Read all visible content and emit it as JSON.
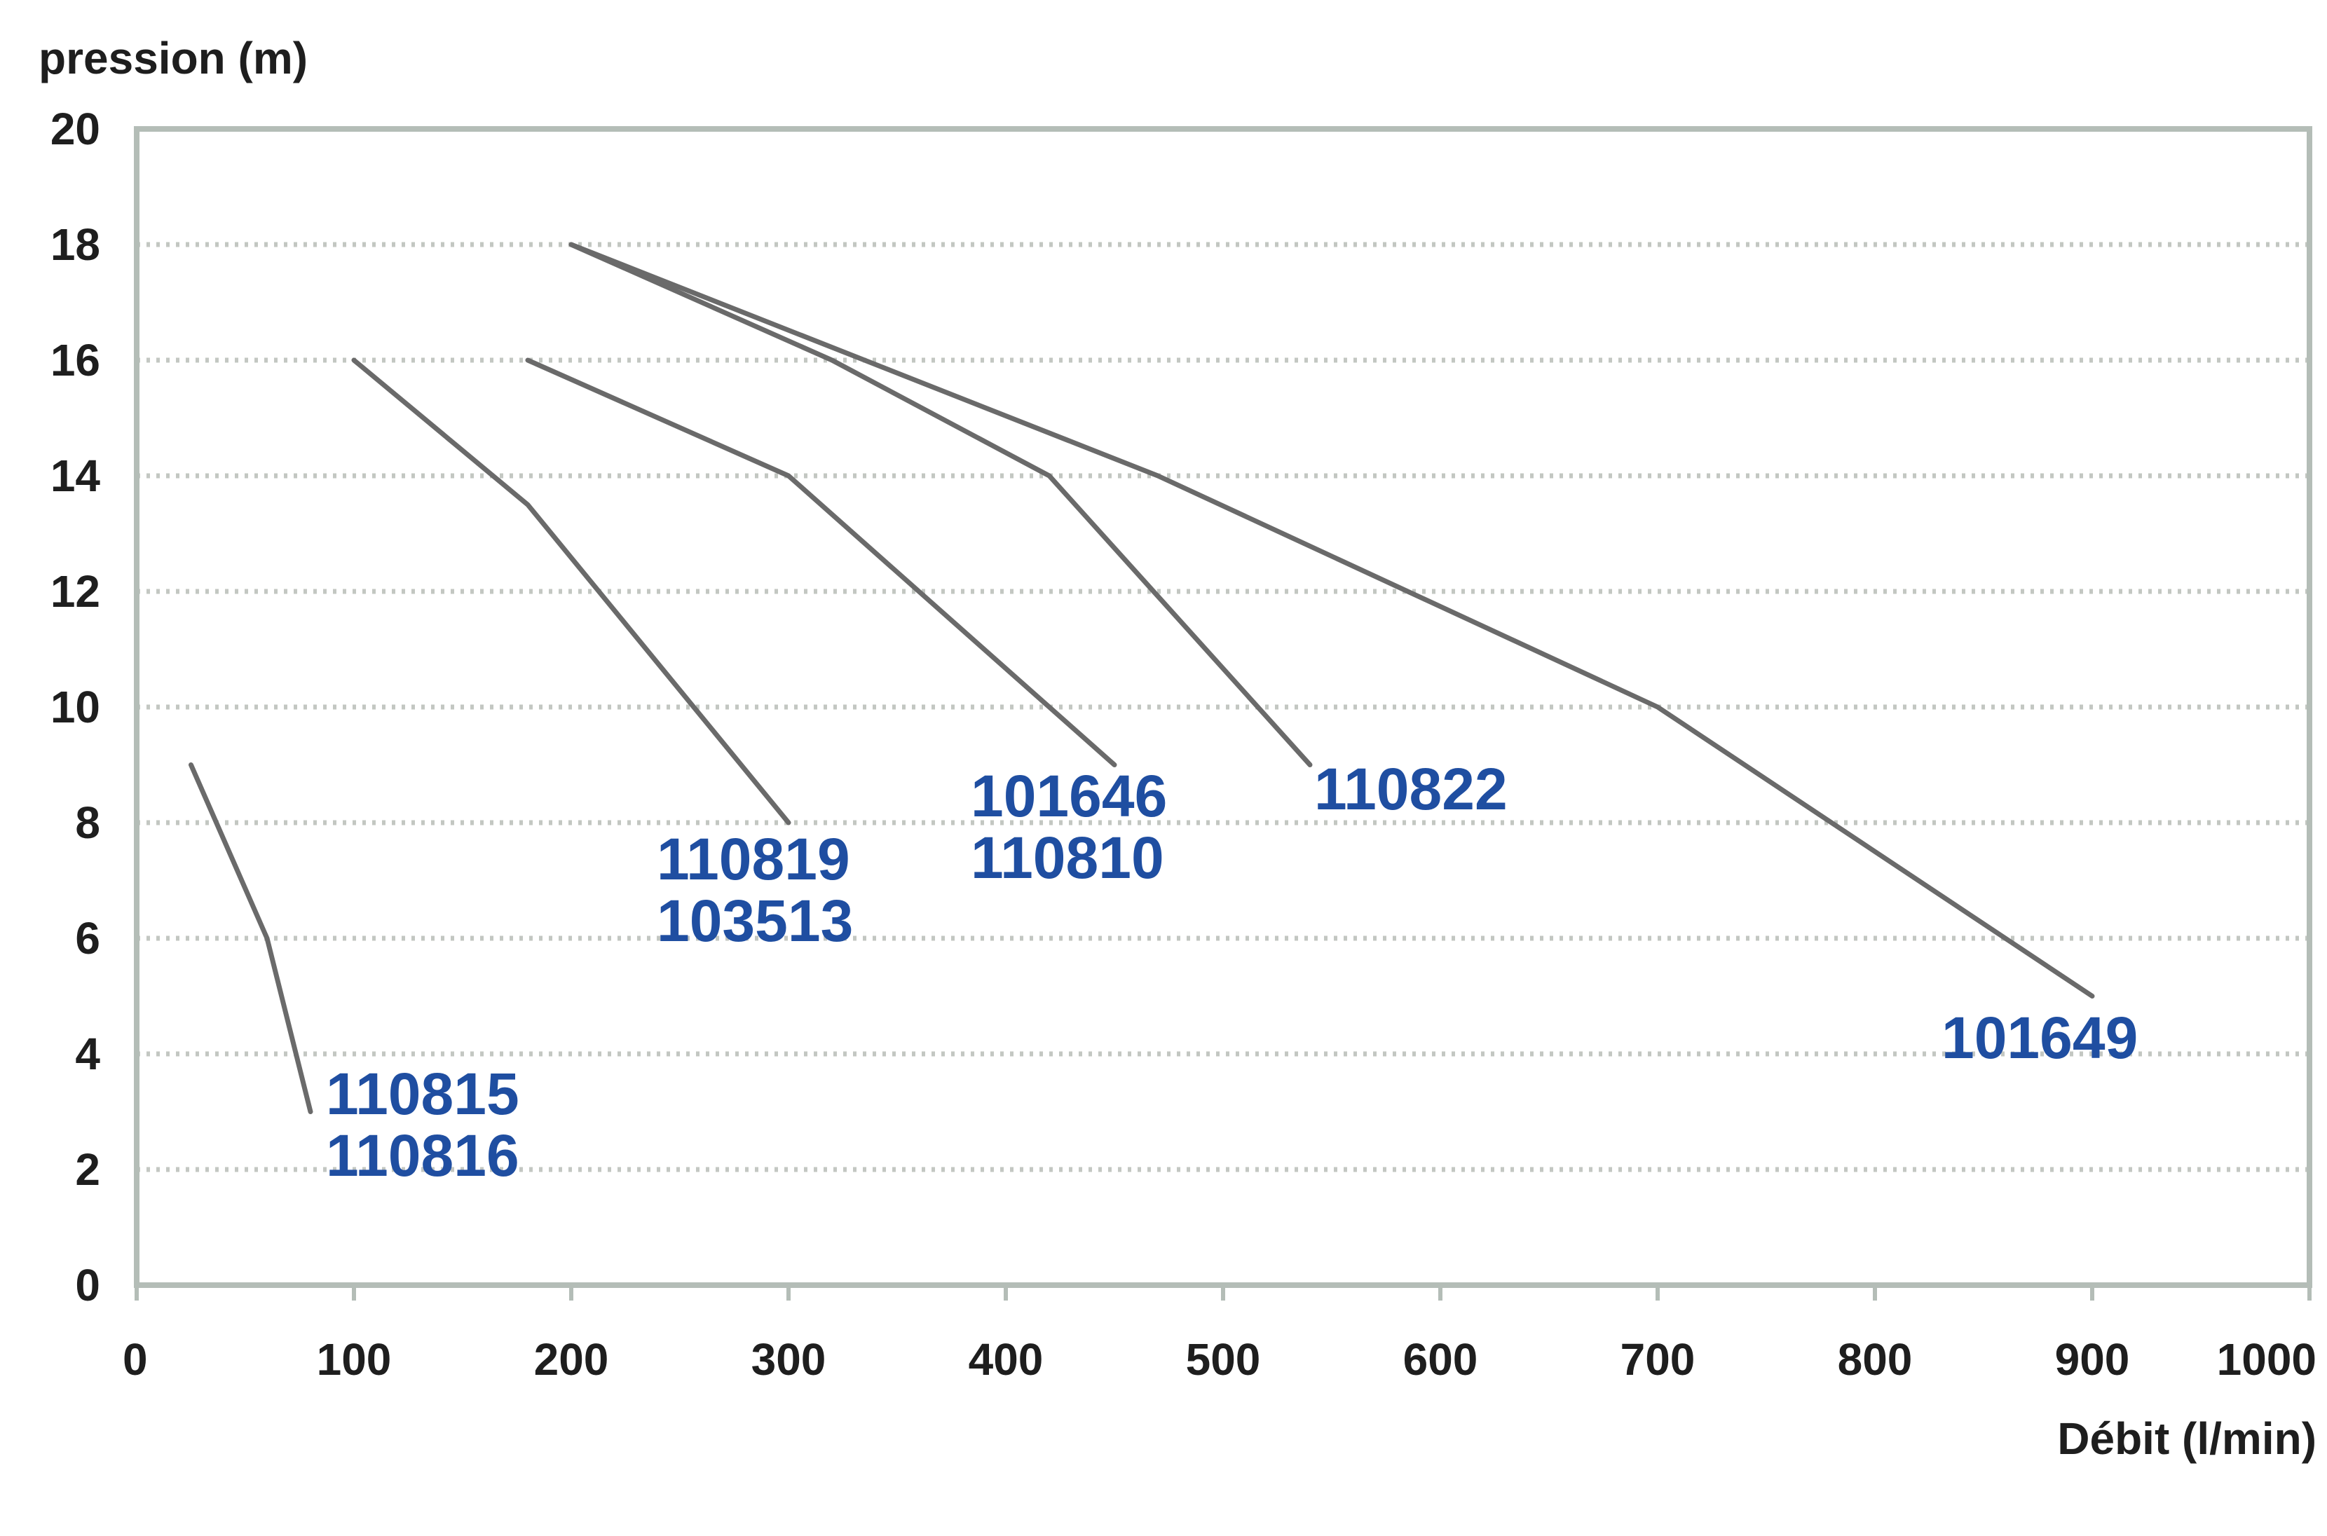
{
  "chart_data": {
    "type": "line",
    "title": "",
    "ylabel": "pression (m)",
    "xlabel": "Débit (l/min)",
    "xlim": [
      0,
      1000
    ],
    "ylim": [
      0,
      20
    ],
    "x_ticks": [
      "0",
      "100",
      "200",
      "300",
      "400",
      "500",
      "600",
      "700",
      "800",
      "900",
      "1000"
    ],
    "y_ticks": [
      "0",
      "2",
      "4",
      "6",
      "8",
      "10",
      "12",
      "14",
      "16",
      "18",
      "20"
    ],
    "grid": "horizontal dotted",
    "legend": "none (series labeled at line ends)",
    "series": [
      {
        "name": "110815\n110816",
        "points": [
          [
            25,
            9
          ],
          [
            60,
            6
          ],
          [
            80,
            3
          ]
        ]
      },
      {
        "name": "110819\n103513",
        "points": [
          [
            100,
            16
          ],
          [
            180,
            13.5
          ],
          [
            300,
            8
          ]
        ]
      },
      {
        "name": "101646\n110810",
        "points": [
          [
            180,
            16
          ],
          [
            300,
            14
          ],
          [
            450,
            9
          ]
        ]
      },
      {
        "name": "110822",
        "points": [
          [
            200,
            18
          ],
          [
            320,
            16
          ],
          [
            420,
            14
          ],
          [
            540,
            9
          ]
        ]
      },
      {
        "name": "101649",
        "points": [
          [
            200,
            18
          ],
          [
            470,
            14
          ],
          [
            700,
            10
          ],
          [
            900,
            5
          ]
        ]
      }
    ]
  },
  "colors": {
    "line": "#6a6a6a",
    "series_label": "#1f4ea1",
    "grid": "#c3c7c2",
    "frame": "#b4bdb7",
    "text": "#1e1e1e"
  }
}
